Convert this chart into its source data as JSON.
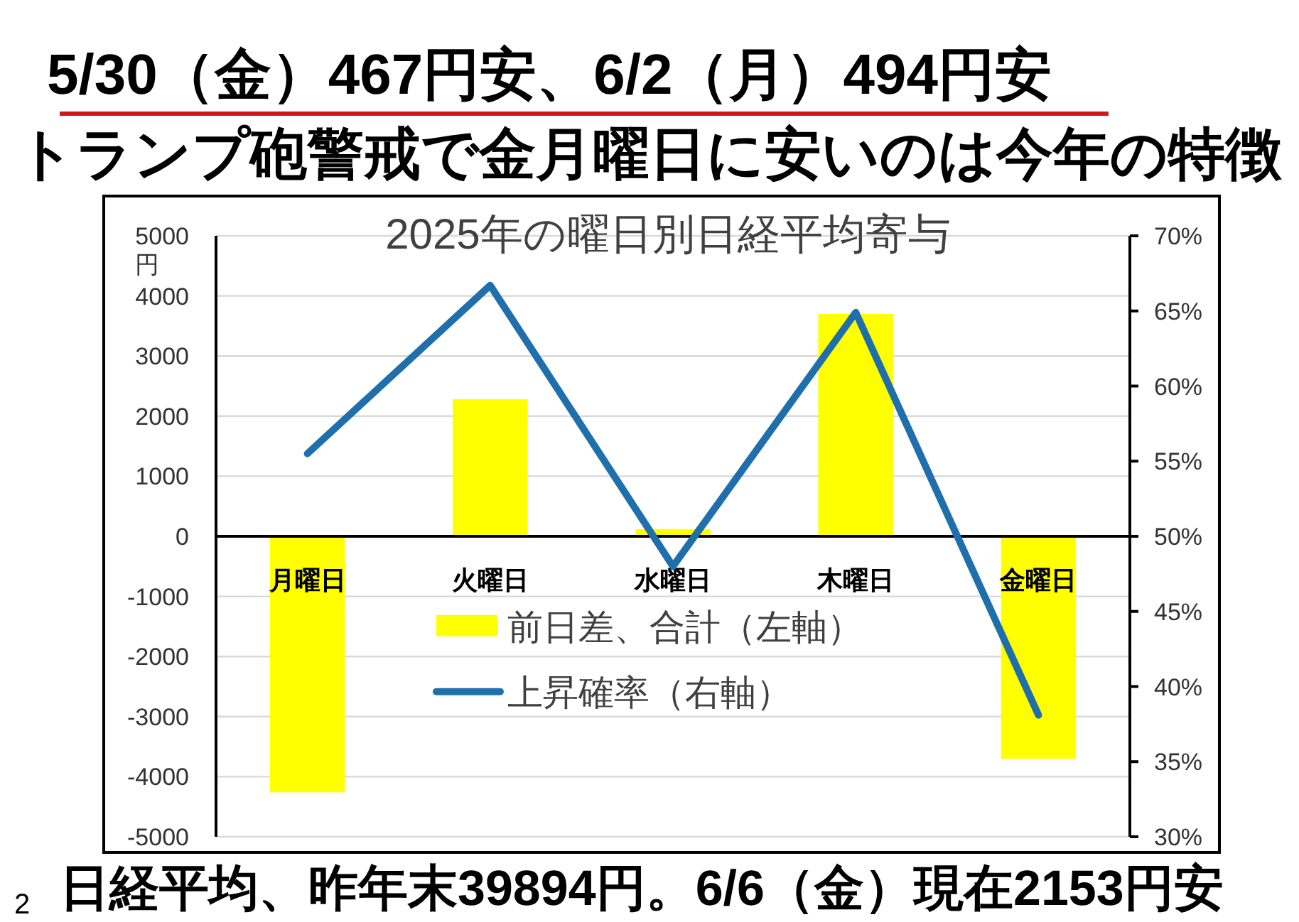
{
  "chart_data": {
    "type": "bar",
    "title": "5/30（金）467円安、6/2（月）494円安",
    "subtitle": "トランプ砲警戒で金月曜日に安いのは今年の特徴",
    "annotations": [
      "2025年の曜日別日経平均寄与",
      "日経平均、昨年末39894円。6/6（金）現在2153円安",
      "2"
    ],
    "ylabel": "円",
    "categories": [
      "月曜日",
      "火曜日",
      "水曜日",
      "木曜日",
      "金曜日"
    ],
    "series": [
      {
        "name": "前日差、合計（左軸）",
        "color": "#ffff00",
        "values": [
          -4260,
          2280,
          120,
          3700,
          -3700
        ]
      },
      {
        "name": "上昇確率（右軸）",
        "type": "line",
        "axis": "y2",
        "color": "#1f6fad",
        "values": [
          55.5,
          66.7,
          48.0,
          64.9,
          38.1
        ]
      }
    ],
    "ylim": [
      -5000,
      5000
    ],
    "yticks": [
      -5000,
      -4000,
      -3000,
      -2000,
      -1000,
      0,
      1000,
      2000,
      3000,
      4000,
      5000
    ],
    "y2lim": [
      30,
      70
    ],
    "y2ticks": [
      {
        "value": 30,
        "label": "30%"
      },
      {
        "value": 35,
        "label": "35%"
      },
      {
        "value": 40,
        "label": "40%"
      },
      {
        "value": 45,
        "label": "45%"
      },
      {
        "value": 50,
        "label": "50%"
      },
      {
        "value": 55,
        "label": "55%"
      },
      {
        "value": 60,
        "label": "60%"
      },
      {
        "value": 65,
        "label": "65%"
      },
      {
        "value": 70,
        "label": "70%"
      }
    ],
    "grid": "y",
    "legend": "center",
    "line_style": "solid"
  }
}
